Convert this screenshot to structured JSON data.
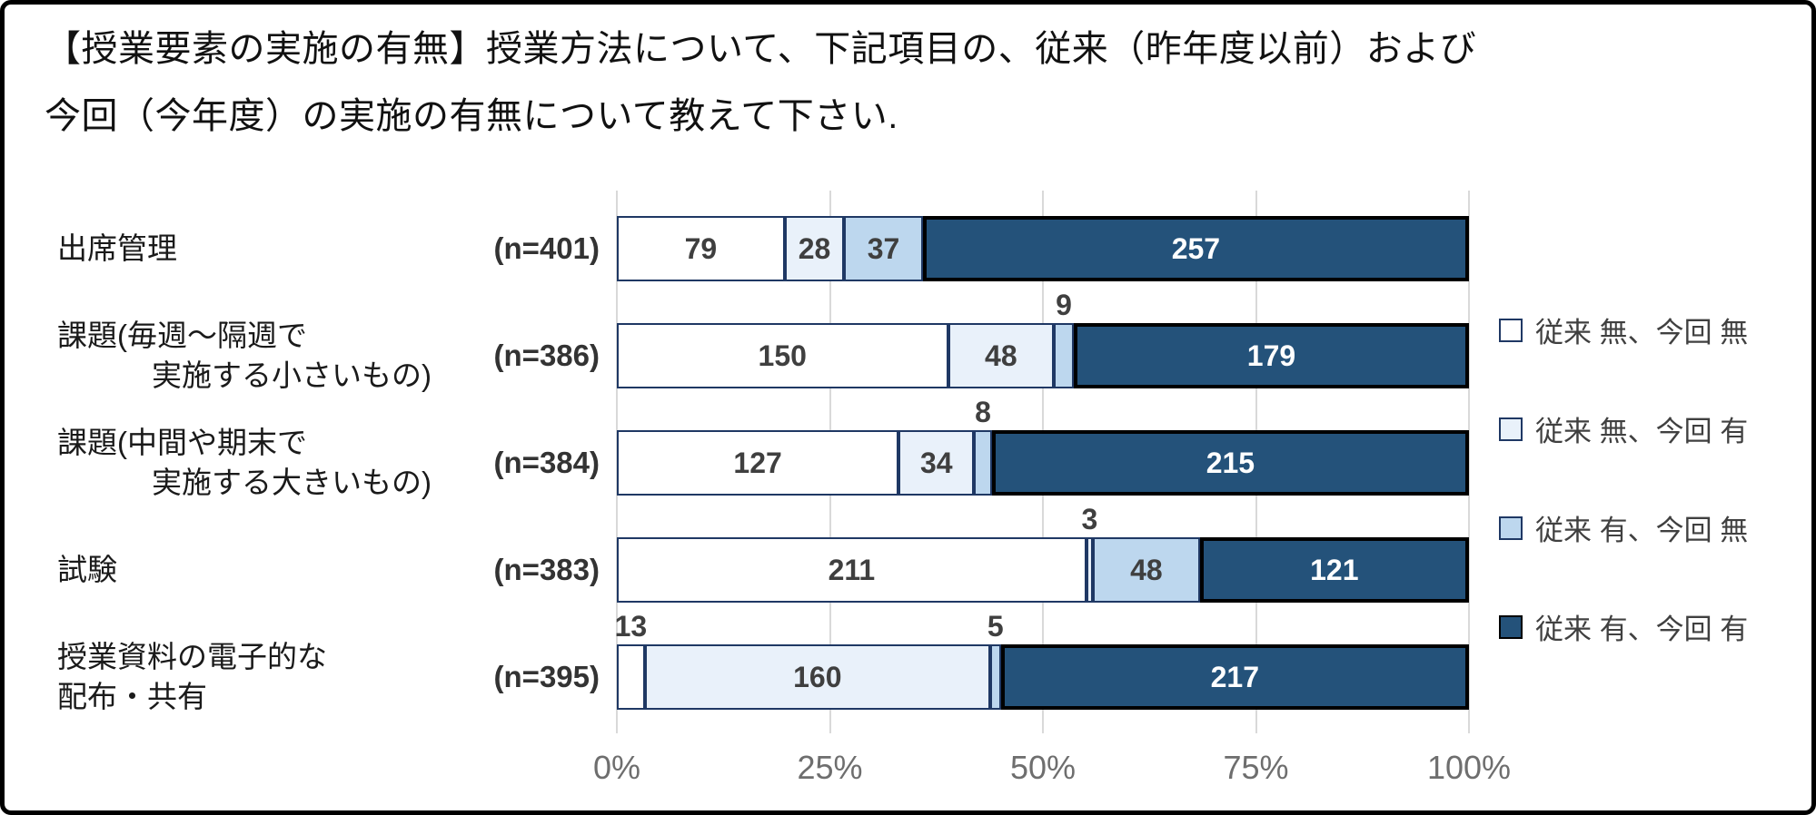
{
  "title": {
    "line1": "【授業要素の実施の有無】授業方法について、下記項目の、従来（昨年度以前）および",
    "line2": "今回（今年度）の実施の有無について教えて下さい."
  },
  "chart_data": {
    "type": "bar",
    "subtype": "100-percent-stacked-horizontal",
    "title": "【授業要素の実施の有無】授業方法について、下記項目の、従来（昨年度以前）および今回（今年度）の実施の有無について教えて下さい.",
    "categories": [
      {
        "label_lines": [
          "出席管理"
        ],
        "indent_second_line": false,
        "n": 401,
        "n_label": "(n=401)"
      },
      {
        "label_lines": [
          "課題(毎週～隔週で",
          "実施する小さいもの)"
        ],
        "indent_second_line": true,
        "n": 386,
        "n_label": "(n=386)"
      },
      {
        "label_lines": [
          "課題(中間や期末で",
          "実施する大きいもの)"
        ],
        "indent_second_line": true,
        "n": 384,
        "n_label": "(n=384)"
      },
      {
        "label_lines": [
          "試験"
        ],
        "indent_second_line": false,
        "n": 383,
        "n_label": "(n=383)"
      },
      {
        "label_lines": [
          "授業資料の電子的な",
          "配布・共有"
        ],
        "indent_second_line": false,
        "n": 395,
        "n_label": "(n=395)"
      }
    ],
    "series": [
      {
        "name": "従来 無、今回 無",
        "fill": "#FFFFFF",
        "border": "#1F3864",
        "label_color": "#3f3f3f",
        "values": [
          79,
          150,
          127,
          211,
          13
        ]
      },
      {
        "name": "従来 無、今回 有",
        "fill": "#E9F1FA",
        "border": "#1F3864",
        "label_color": "#3f3f3f",
        "values": [
          28,
          48,
          34,
          3,
          160
        ]
      },
      {
        "name": "従来 有、今回 無",
        "fill": "#BDD7EE",
        "border": "#1F3864",
        "label_color": "#3f3f3f",
        "values": [
          37,
          9,
          8,
          48,
          5
        ]
      },
      {
        "name": "従来 有、今回 有",
        "fill": "#24527A",
        "border": "#000000",
        "label_color": "#FFFFFF",
        "values": [
          257,
          179,
          215,
          121,
          217
        ]
      }
    ],
    "xticks": [
      "0%",
      "25%",
      "50%",
      "75%",
      "100%"
    ],
    "xlim": [
      0,
      100
    ],
    "grid": true,
    "legend_position": "right",
    "colors": {
      "gridline": "#D9D9D9",
      "axis_text": "#6E6E6E",
      "segment_border": "#1F3864",
      "dark_segment_border": "#000000",
      "frame_border": "#000000"
    },
    "min_inside_label_percent": 4
  }
}
